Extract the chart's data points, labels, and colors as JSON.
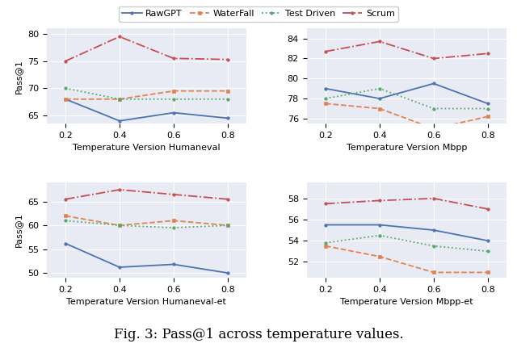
{
  "temperatures": [
    0.2,
    0.4,
    0.6,
    0.8
  ],
  "humaneval": {
    "RawGPT": [
      68.0,
      64.0,
      65.5,
      64.5
    ],
    "WaterFall": [
      68.0,
      68.0,
      69.5,
      69.5
    ],
    "TestDriven": [
      70.0,
      68.0,
      68.0,
      68.0
    ],
    "Scrum": [
      75.0,
      79.5,
      75.5,
      75.3
    ],
    "ylim": [
      63.5,
      81
    ],
    "yticks": [
      65,
      70,
      75,
      80
    ],
    "xlabel": "Temperature Version Humaneval"
  },
  "mbpp": {
    "RawGPT": [
      79.0,
      78.0,
      79.5,
      77.5
    ],
    "WaterFall": [
      77.5,
      77.0,
      75.0,
      76.2
    ],
    "TestDriven": [
      78.0,
      79.0,
      77.0,
      77.0
    ],
    "Scrum": [
      82.7,
      83.7,
      82.0,
      82.5
    ],
    "ylim": [
      75.5,
      85
    ],
    "yticks": [
      76,
      78,
      80,
      82,
      84
    ],
    "xlabel": "Temperature Version Mbpp"
  },
  "humaneval_et": {
    "RawGPT": [
      56.2,
      51.2,
      51.8,
      50.0
    ],
    "WaterFall": [
      62.0,
      60.0,
      61.0,
      60.0
    ],
    "TestDriven": [
      61.0,
      60.0,
      59.5,
      60.0
    ],
    "Scrum": [
      65.5,
      67.5,
      66.5,
      65.5
    ],
    "ylim": [
      49.0,
      69
    ],
    "yticks": [
      50,
      55,
      60,
      65
    ],
    "xlabel": "Temperature Version Humaneval-et"
  },
  "mbpp_et": {
    "RawGPT": [
      55.5,
      55.5,
      55.0,
      54.0
    ],
    "WaterFall": [
      53.5,
      52.5,
      51.0,
      51.0
    ],
    "TestDriven": [
      53.8,
      54.5,
      53.5,
      53.0
    ],
    "Scrum": [
      57.5,
      57.8,
      58.0,
      57.0
    ],
    "ylim": [
      50.5,
      59.5
    ],
    "yticks": [
      52,
      54,
      56,
      58
    ],
    "xlabel": "Temperature Version Mbpp-et"
  },
  "line_styles": {
    "RawGPT": {
      "color": "#4C72B0",
      "linestyle": "-",
      "marker": "o",
      "markersize": 2.5,
      "linewidth": 1.3
    },
    "WaterFall": {
      "color": "#DD8452",
      "linestyle": "--",
      "marker": "s",
      "markersize": 2.5,
      "linewidth": 1.3
    },
    "TestDriven": {
      "color": "#55A868",
      "linestyle": ":",
      "marker": "o",
      "markersize": 2.5,
      "linewidth": 1.3
    },
    "Scrum": {
      "color": "#C44E52",
      "linestyle": "-.",
      "marker": "o",
      "markersize": 2.5,
      "linewidth": 1.3
    }
  },
  "legend_labels": [
    "RawGPT",
    "WaterFall",
    "Test Driven",
    "Scrum"
  ],
  "series_keys": [
    "RawGPT",
    "WaterFall",
    "TestDriven",
    "Scrum"
  ],
  "ylabel": "Pass@1",
  "background_color": "#E8EBF3",
  "figure_caption": "Fig. 3: Pass@1 across temperature values."
}
